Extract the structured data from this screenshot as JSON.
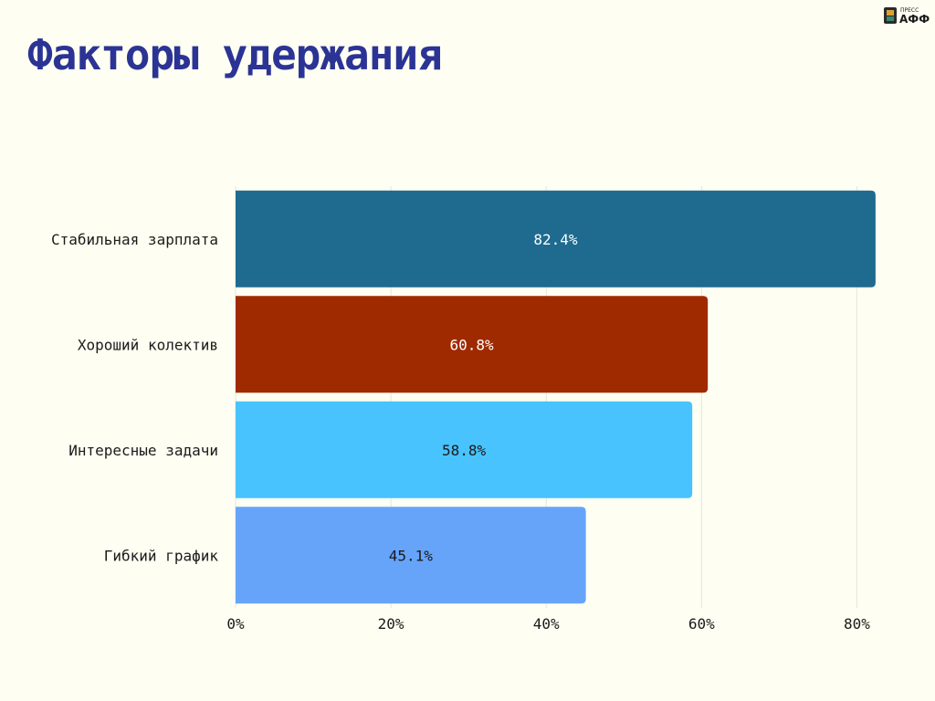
{
  "page": {
    "title": "Факторы удержания",
    "logo": {
      "icon": "press-aff-logo-icon",
      "top_text": "ПРЕСС",
      "main_text": "АФФ"
    }
  },
  "chart_data": {
    "type": "bar",
    "orientation": "horizontal",
    "title": "Факторы удержания",
    "categories": [
      "Стабильная зарплата",
      "Хороший колектив",
      "Интересные задачи",
      "Гибкий график"
    ],
    "values": [
      82.4,
      60.8,
      58.8,
      45.1
    ],
    "value_labels": [
      "82.4%",
      "60.8%",
      "58.8%",
      "45.1%"
    ],
    "bar_colors": [
      "#1f6a8f",
      "#a02a00",
      "#48c3fd",
      "#66a4fa"
    ],
    "value_label_colors": [
      "#ffffff",
      "#ffffff",
      "#1a1a1a",
      "#1a1a1a"
    ],
    "xlabel": "",
    "ylabel": "",
    "xlim": [
      0,
      85
    ],
    "x_ticks": [
      0,
      20,
      40,
      60,
      80
    ],
    "x_tick_labels": [
      "0%",
      "20%",
      "40%",
      "60%",
      "80%"
    ],
    "grid": true,
    "legend": "none"
  }
}
